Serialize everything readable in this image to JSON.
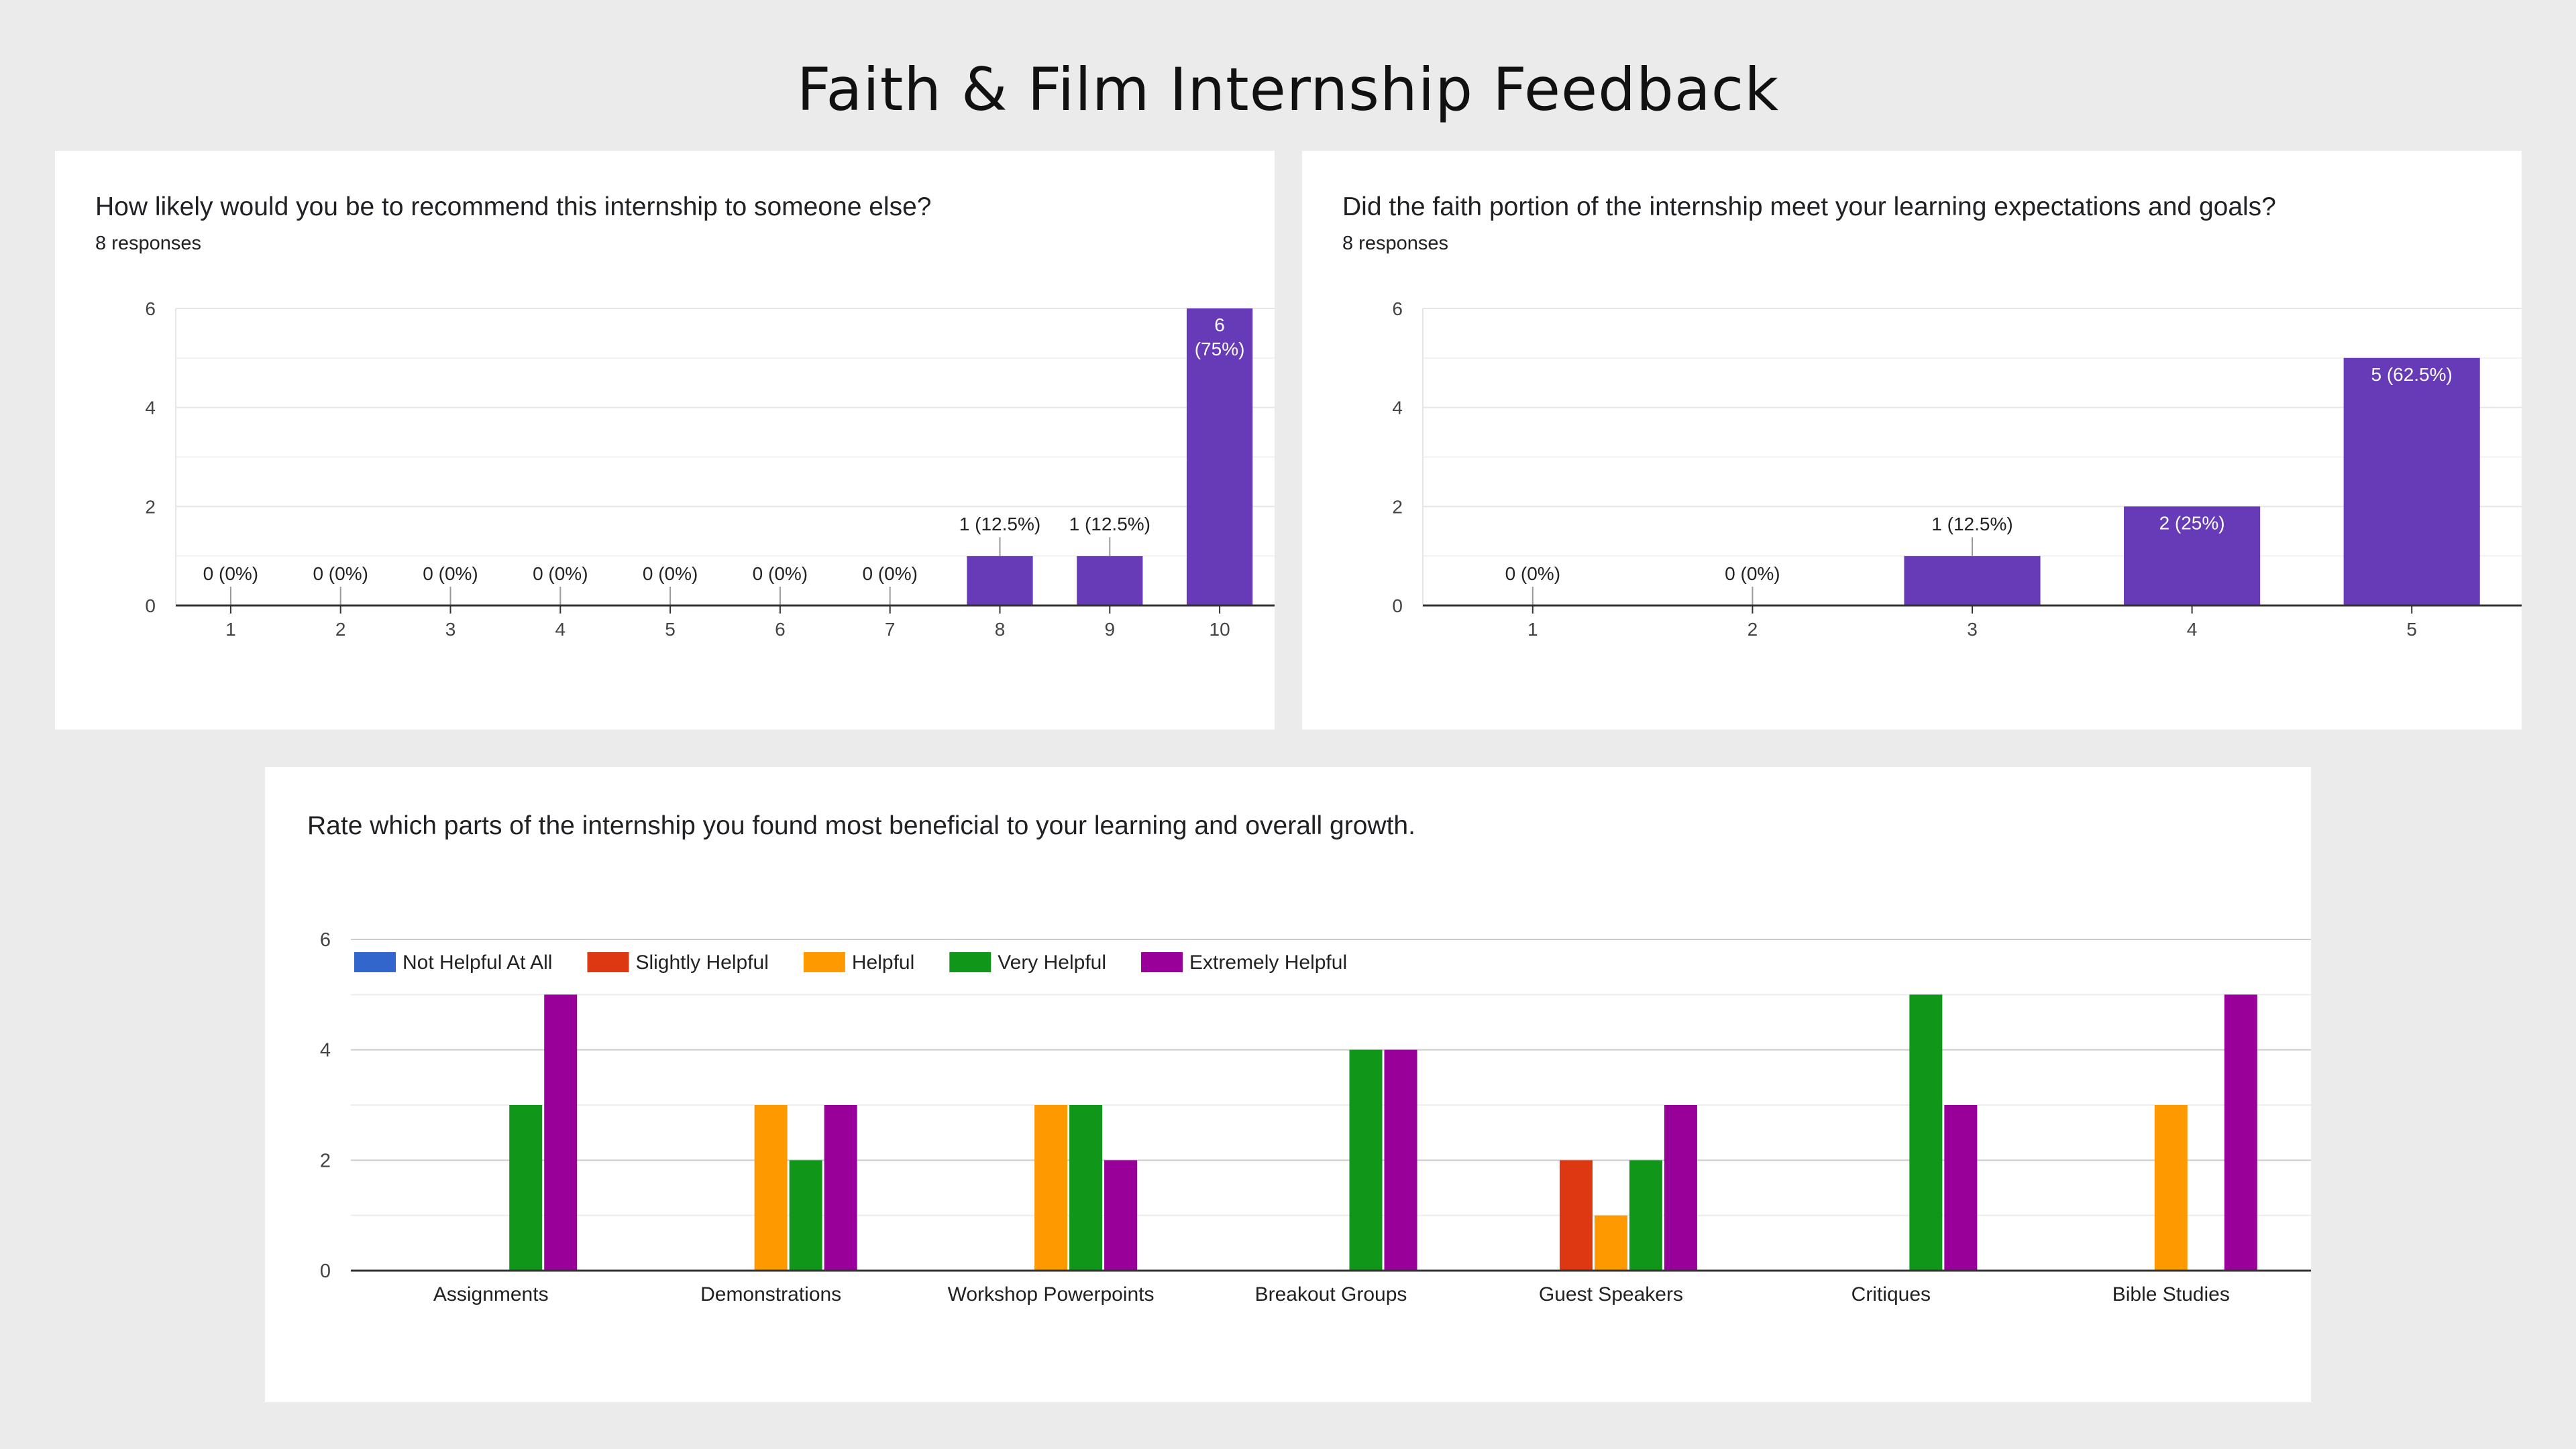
{
  "page": {
    "title": "Faith & Film Internship Feedback"
  },
  "colors": {
    "bar": "#673ab7",
    "grid": "#e6e6e6",
    "axis": "#333333",
    "tick_text": "#444444"
  },
  "chart_data": [
    {
      "type": "bar",
      "title": "How likely would you be to recommend this internship to someone else?",
      "subtitle": "8 responses",
      "categories": [
        "1",
        "2",
        "3",
        "4",
        "5",
        "6",
        "7",
        "8",
        "9",
        "10"
      ],
      "values": [
        0,
        0,
        0,
        0,
        0,
        0,
        0,
        1,
        1,
        6
      ],
      "data_labels": [
        "0 (0%)",
        "0 (0%)",
        "0 (0%)",
        "0 (0%)",
        "0 (0%)",
        "0 (0%)",
        "0 (0%)",
        "1 (12.5%)",
        "1 (12.5%)",
        "6\n(75%)"
      ],
      "yticks": [
        "0",
        "2",
        "4",
        "6"
      ],
      "ylim": [
        0,
        6
      ],
      "grid": true
    },
    {
      "type": "bar",
      "title": "Did the faith portion of the internship meet your learning expectations and goals?",
      "subtitle": "8 responses",
      "categories": [
        "1",
        "2",
        "3",
        "4",
        "5"
      ],
      "values": [
        0,
        0,
        1,
        2,
        5
      ],
      "data_labels": [
        "0 (0%)",
        "0 (0%)",
        "1 (12.5%)",
        "2 (25%)",
        "5 (62.5%)"
      ],
      "yticks": [
        "0",
        "2",
        "4",
        "6"
      ],
      "ylim": [
        0,
        6
      ],
      "grid": true
    },
    {
      "type": "bar",
      "title": "Rate which parts of the internship you found most beneficial to your learning and overall growth.",
      "categories": [
        "Assignments",
        "Demonstrations",
        "Workshop Powerpoints",
        "Breakout Groups",
        "Guest Speakers",
        "Critiques",
        "Bible Studies"
      ],
      "series": [
        {
          "name": "Not Helpful At All",
          "color": "#3366cc",
          "values": [
            0,
            0,
            0,
            0,
            0,
            0,
            0
          ]
        },
        {
          "name": "Slightly Helpful",
          "color": "#dc3912",
          "values": [
            0,
            0,
            0,
            0,
            2,
            0,
            0
          ]
        },
        {
          "name": "Helpful",
          "color": "#ff9900",
          "values": [
            0,
            3,
            3,
            0,
            1,
            0,
            3
          ]
        },
        {
          "name": "Very Helpful",
          "color": "#109618",
          "values": [
            3,
            2,
            3,
            4,
            2,
            5,
            0
          ]
        },
        {
          "name": "Extremely Helpful",
          "color": "#990099",
          "values": [
            5,
            3,
            2,
            4,
            3,
            3,
            5
          ]
        }
      ],
      "yticks": [
        "0",
        "2",
        "4",
        "6"
      ],
      "ylim": [
        0,
        6
      ],
      "legend": "top-left",
      "grid": true
    }
  ]
}
